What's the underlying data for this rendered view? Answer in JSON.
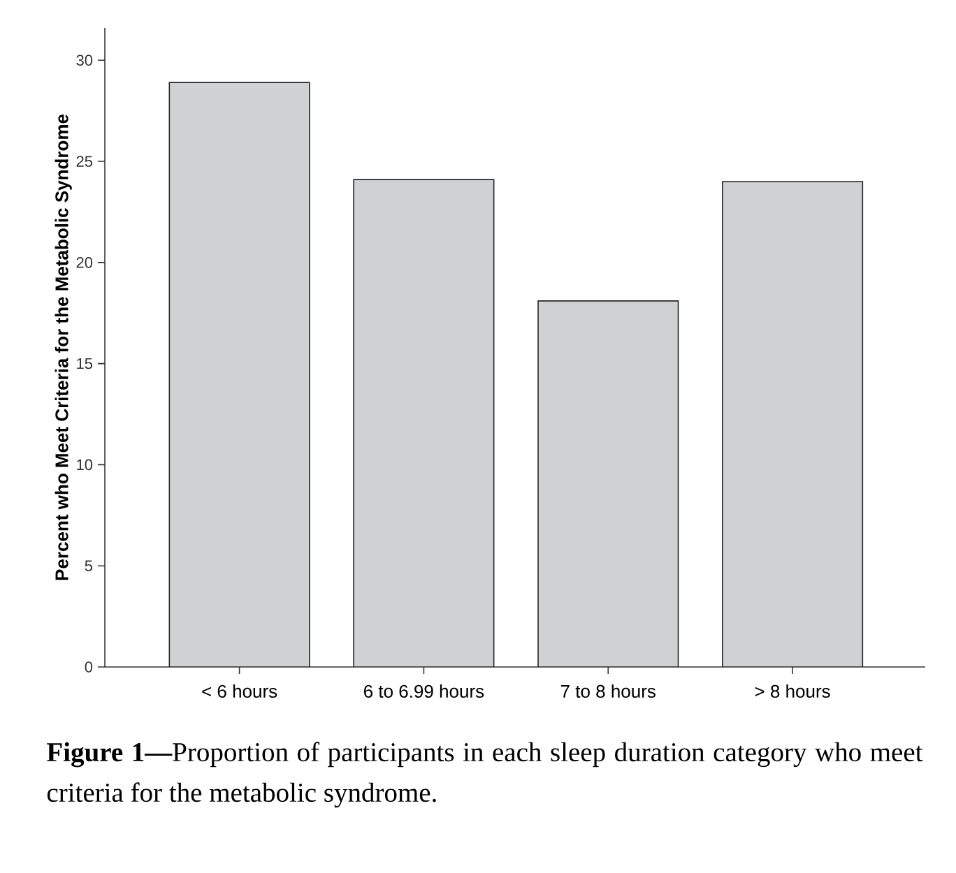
{
  "chart_data": {
    "type": "bar",
    "ylabel": "Percent who Meet Criteria for the Metabolic Syndrome",
    "categories": [
      "< 6 hours",
      "6 to 6.99 hours",
      "7 to 8 hours",
      "> 8 hours"
    ],
    "values": [
      28.9,
      24.1,
      18.1,
      24.0
    ],
    "color": "#d0d1d3",
    "ylim": [
      0,
      31.6
    ],
    "yticks": [
      0,
      5,
      10,
      15,
      20,
      25,
      30
    ],
    "grid": false,
    "annotations": [
      "**Figure 1—**Proportion of participants in each sleep duration category who meet criteria for the metabolic syndrome."
    ]
  }
}
